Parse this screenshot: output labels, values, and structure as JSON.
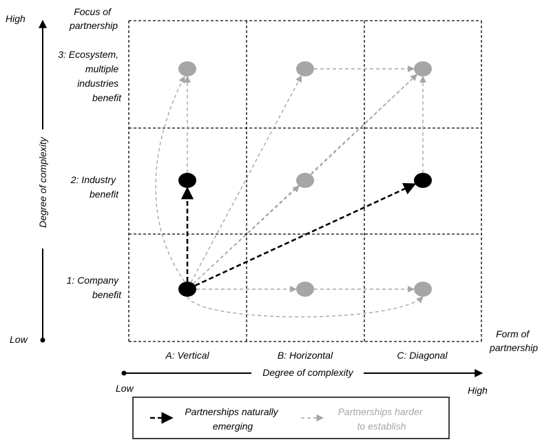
{
  "y_axis": {
    "title": "Degree of complexity",
    "low": "Low",
    "high": "High",
    "category_header": [
      "Focus of",
      "partnership"
    ]
  },
  "x_axis": {
    "title": "Degree of complexity",
    "low": "Low",
    "high": "High",
    "category_header": [
      "Form of",
      "partnership"
    ]
  },
  "rows": [
    {
      "id": "ecosystem",
      "lines": [
        "3: Ecosystem,",
        "multiple",
        "industries",
        "benefit"
      ]
    },
    {
      "id": "industry",
      "lines": [
        "2: Industry",
        "benefit"
      ]
    },
    {
      "id": "company",
      "lines": [
        "1: Company",
        "benefit"
      ]
    }
  ],
  "columns": [
    {
      "id": "vertical",
      "label": "A: Vertical"
    },
    {
      "id": "horizontal",
      "label": "B: Horizontal"
    },
    {
      "id": "diagonal",
      "label": "C: Diagonal"
    }
  ],
  "nodes": [
    {
      "id": "A3",
      "col": "vertical",
      "row": "ecosystem",
      "emerging": false
    },
    {
      "id": "B3",
      "col": "horizontal",
      "row": "ecosystem",
      "emerging": false
    },
    {
      "id": "C3",
      "col": "diagonal",
      "row": "ecosystem",
      "emerging": false
    },
    {
      "id": "A2",
      "col": "vertical",
      "row": "industry",
      "emerging": true
    },
    {
      "id": "B2",
      "col": "horizontal",
      "row": "industry",
      "emerging": false
    },
    {
      "id": "C2",
      "col": "diagonal",
      "row": "industry",
      "emerging": true
    },
    {
      "id": "A1",
      "col": "vertical",
      "row": "company",
      "emerging": true
    },
    {
      "id": "B1",
      "col": "horizontal",
      "row": "company",
      "emerging": false
    },
    {
      "id": "C1",
      "col": "diagonal",
      "row": "company",
      "emerging": false
    }
  ],
  "edges": [
    {
      "from": "A1",
      "to": "A2",
      "type": "emerging"
    },
    {
      "from": "A1",
      "to": "C2",
      "type": "emerging"
    },
    {
      "from": "A2",
      "to": "A3",
      "type": "harder"
    },
    {
      "from": "A1",
      "to": "A3",
      "type": "harder",
      "curve": "left"
    },
    {
      "from": "A1",
      "to": "B3",
      "type": "harder"
    },
    {
      "from": "A1",
      "to": "C3",
      "type": "harder"
    },
    {
      "from": "A1",
      "to": "B2",
      "type": "harder"
    },
    {
      "from": "A1",
      "to": "B1",
      "type": "harder"
    },
    {
      "from": "B1",
      "to": "C1",
      "type": "harder"
    },
    {
      "from": "A1",
      "to": "C1",
      "type": "harder",
      "curve": "below"
    },
    {
      "from": "B3",
      "to": "C3",
      "type": "harder"
    },
    {
      "from": "B2",
      "to": "C3",
      "type": "harder"
    },
    {
      "from": "C2",
      "to": "C3",
      "type": "harder"
    }
  ],
  "legend": {
    "emerging": [
      "Partnerships naturally",
      "emerging"
    ],
    "harder": [
      "Partnerships harder",
      "to establish"
    ]
  },
  "colors": {
    "emerging": "#000000",
    "harder": "#a6a6a6",
    "grid": "#000000"
  }
}
